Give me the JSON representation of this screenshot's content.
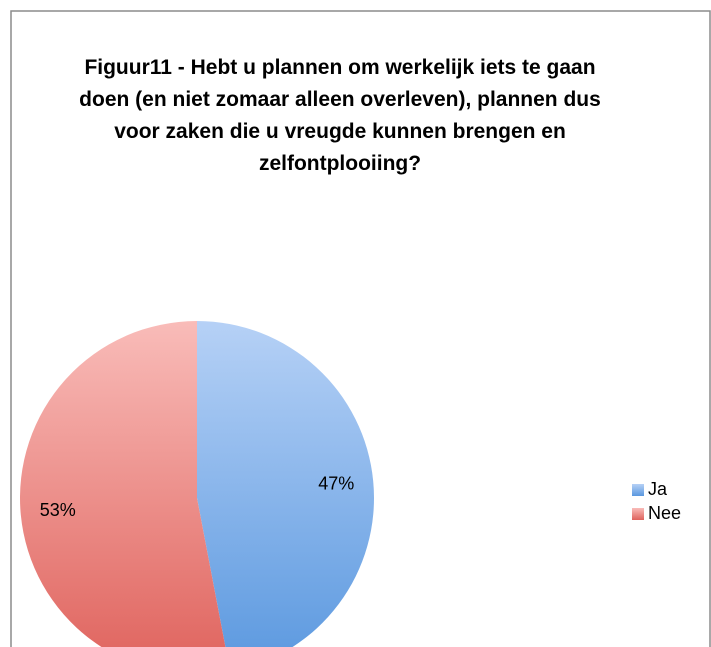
{
  "chart_data": {
    "type": "pie",
    "title": "Figuur11 - Hebt u plannen om werkelijk iets te gaan doen (en niet zomaar alleen overleven), plannen dus voor zaken die u vreugde kunnen brengen en zelfontplooiing?",
    "categories": [
      "Ja",
      "Nee"
    ],
    "values": [
      47,
      53
    ],
    "value_labels": [
      "47%",
      "53%"
    ],
    "colors": [
      "#6fa2e4",
      "#ea7f7a"
    ],
    "legend": "right"
  }
}
